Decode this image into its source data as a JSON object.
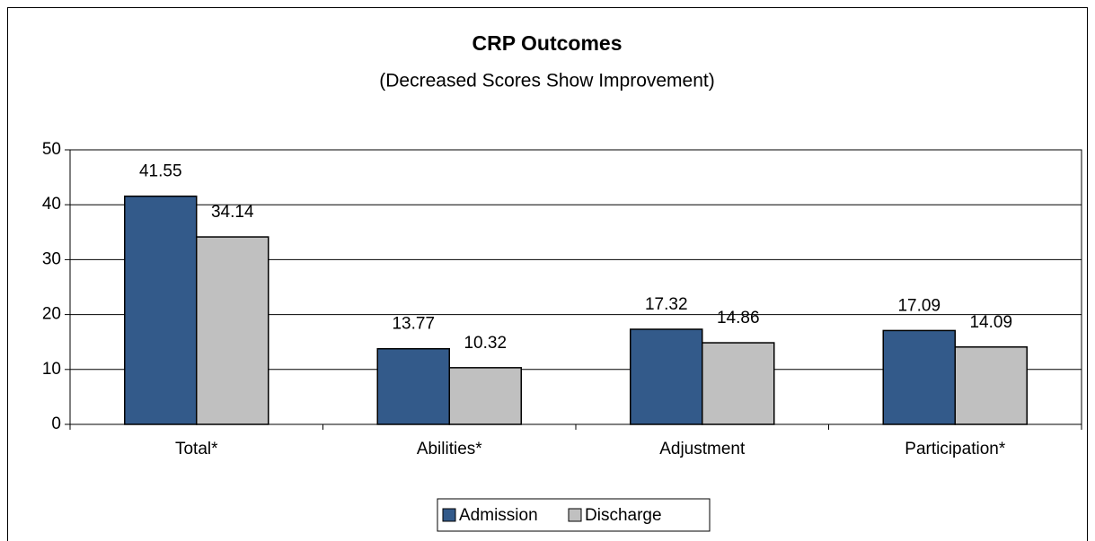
{
  "chart_data": {
    "type": "bar",
    "title": "CRP Outcomes",
    "subtitle": "(Decreased Scores Show Improvement)",
    "categories": [
      "Total*",
      "Abilities*",
      "Adjustment",
      "Participation*"
    ],
    "series": [
      {
        "name": "Admission",
        "color": "#335a8a",
        "values": [
          41.55,
          13.77,
          17.32,
          17.09
        ]
      },
      {
        "name": "Discharge",
        "color": "#c0c0c0",
        "values": [
          34.14,
          10.32,
          14.86,
          14.09
        ]
      }
    ],
    "ylim": [
      0,
      50
    ],
    "yticks": [
      0,
      10,
      20,
      30,
      40,
      50
    ],
    "grid": true,
    "legend": "bottom"
  }
}
